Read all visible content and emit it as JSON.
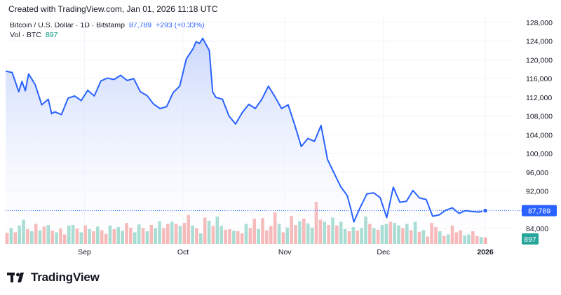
{
  "header": {
    "created": "Created with TradingView.com, Jan 01, 2026 11:18 UTC"
  },
  "legend": {
    "symbol": "Bitcoin / U.S. Dollar · 1D · Bitstamp",
    "price": "87,789",
    "change": "+293 (+0.33%)",
    "volume_label": "Vol · BTC",
    "volume_value": "897"
  },
  "footer": {
    "brand": "TradingView"
  },
  "colors": {
    "line": "#2962ff",
    "area_top": "#c5d3fb",
    "volume_up": "#8fd3c7",
    "volume_down": "#f5a6a6",
    "price_badge": "#2962ff",
    "volume_badge": "#26a69a"
  },
  "chart_data": {
    "type": "area",
    "x_range": [
      "2025-08-08",
      "2026-01-01"
    ],
    "ylim": [
      84000,
      128000
    ],
    "y_ticks": [
      "128,000",
      "124,000",
      "120,000",
      "116,000",
      "112,000",
      "108,000",
      "104,000",
      "100,000",
      "96,000",
      "92,000",
      "88,000",
      "84,000"
    ],
    "x_ticks": [
      {
        "label": "Sep",
        "date": "2025-09-01"
      },
      {
        "label": "Oct",
        "date": "2025-10-01"
      },
      {
        "label": "Nov",
        "date": "2025-11-01"
      },
      {
        "label": "Dec",
        "date": "2025-12-01"
      },
      {
        "label": "2026",
        "date": "2026-01-01"
      }
    ],
    "last_price_label": "87,789",
    "last_volume_label": "897",
    "series": [
      {
        "name": "Bitcoin / U.S. Dollar",
        "x": [
          "2025-08-08",
          "2025-08-10",
          "2025-08-12",
          "2025-08-13",
          "2025-08-14",
          "2025-08-15",
          "2025-08-17",
          "2025-08-19",
          "2025-08-21",
          "2025-08-22",
          "2025-08-23",
          "2025-08-25",
          "2025-08-27",
          "2025-08-29",
          "2025-08-31",
          "2025-09-02",
          "2025-09-04",
          "2025-09-06",
          "2025-09-08",
          "2025-09-10",
          "2025-09-12",
          "2025-09-14",
          "2025-09-16",
          "2025-09-18",
          "2025-09-20",
          "2025-09-22",
          "2025-09-24",
          "2025-09-26",
          "2025-09-28",
          "2025-09-30",
          "2025-10-02",
          "2025-10-04",
          "2025-10-05",
          "2025-10-06",
          "2025-10-07",
          "2025-10-09",
          "2025-10-10",
          "2025-10-11",
          "2025-10-13",
          "2025-10-15",
          "2025-10-17",
          "2025-10-19",
          "2025-10-21",
          "2025-10-23",
          "2025-10-25",
          "2025-10-27",
          "2025-10-29",
          "2025-10-31",
          "2025-11-02",
          "2025-11-04",
          "2025-11-06",
          "2025-11-08",
          "2025-11-10",
          "2025-11-12",
          "2025-11-14",
          "2025-11-16",
          "2025-11-18",
          "2025-11-20",
          "2025-11-21",
          "2025-11-22",
          "2025-11-24",
          "2025-11-26",
          "2025-11-28",
          "2025-11-30",
          "2025-12-02",
          "2025-12-04",
          "2025-12-06",
          "2025-12-08",
          "2025-12-10",
          "2025-12-12",
          "2025-12-14",
          "2025-12-16",
          "2025-12-18",
          "2025-12-20",
          "2025-12-22",
          "2025-12-24",
          "2025-12-26",
          "2025-12-28",
          "2025-12-30",
          "2026-01-01"
        ],
        "values": [
          117600,
          117300,
          113200,
          115400,
          113400,
          117000,
          114700,
          110400,
          111600,
          108500,
          108900,
          108300,
          111800,
          112300,
          111300,
          113500,
          112300,
          115500,
          116100,
          115800,
          116700,
          115600,
          116000,
          113200,
          112400,
          110600,
          109600,
          110000,
          113000,
          114400,
          120200,
          122300,
          123900,
          123500,
          124600,
          122000,
          113200,
          112000,
          111600,
          108000,
          106300,
          108700,
          110500,
          109600,
          111600,
          114400,
          112100,
          109600,
          110400,
          106100,
          101500,
          103200,
          102600,
          106000,
          98700,
          95800,
          92900,
          91000,
          88400,
          85400,
          88600,
          91400,
          91600,
          90600,
          86300,
          92800,
          89600,
          89800,
          92100,
          90500,
          90200,
          86600,
          86900,
          87900,
          88400,
          87200,
          87800,
          87600,
          87500,
          87789
        ]
      }
    ],
    "volume": [
      {
        "v": 2.1,
        "c": "down"
      },
      {
        "v": 3.0,
        "c": "up"
      },
      {
        "v": 2.2,
        "c": "down"
      },
      {
        "v": 3.5,
        "c": "up"
      },
      {
        "v": 4.6,
        "c": "up"
      },
      {
        "v": 2.8,
        "c": "down"
      },
      {
        "v": 2.4,
        "c": "up"
      },
      {
        "v": 3.8,
        "c": "down"
      },
      {
        "v": 2.6,
        "c": "up"
      },
      {
        "v": 3.3,
        "c": "down"
      },
      {
        "v": 3.6,
        "c": "up"
      },
      {
        "v": 2.5,
        "c": "down"
      },
      {
        "v": 2.2,
        "c": "up"
      },
      {
        "v": 2.9,
        "c": "down"
      },
      {
        "v": 1.8,
        "c": "down"
      },
      {
        "v": 3.5,
        "c": "up"
      },
      {
        "v": 3.6,
        "c": "up"
      },
      {
        "v": 2.9,
        "c": "down"
      },
      {
        "v": 2.2,
        "c": "up"
      },
      {
        "v": 3.5,
        "c": "down"
      },
      {
        "v": 2.8,
        "c": "up"
      },
      {
        "v": 2.4,
        "c": "down"
      },
      {
        "v": 3.3,
        "c": "up"
      },
      {
        "v": 2.6,
        "c": "down"
      },
      {
        "v": 1.9,
        "c": "down"
      },
      {
        "v": 3.5,
        "c": "up"
      },
      {
        "v": 2.8,
        "c": "down"
      },
      {
        "v": 3.2,
        "c": "up"
      },
      {
        "v": 2.5,
        "c": "up"
      },
      {
        "v": 4.0,
        "c": "down"
      },
      {
        "v": 3.1,
        "c": "down"
      },
      {
        "v": 2.2,
        "c": "up"
      },
      {
        "v": 3.7,
        "c": "up"
      },
      {
        "v": 3.0,
        "c": "down"
      },
      {
        "v": 2.4,
        "c": "up"
      },
      {
        "v": 3.6,
        "c": "down"
      },
      {
        "v": 3.0,
        "c": "up"
      },
      {
        "v": 4.3,
        "c": "up"
      },
      {
        "v": 3.0,
        "c": "down"
      },
      {
        "v": 3.8,
        "c": "down"
      },
      {
        "v": 4.2,
        "c": "up"
      },
      {
        "v": 3.8,
        "c": "down"
      },
      {
        "v": 3.4,
        "c": "up"
      },
      {
        "v": 4.0,
        "c": "down"
      },
      {
        "v": 5.5,
        "c": "down"
      },
      {
        "v": 3.5,
        "c": "up"
      },
      {
        "v": 3.0,
        "c": "down"
      },
      {
        "v": 2.0,
        "c": "up"
      },
      {
        "v": 5.0,
        "c": "down"
      },
      {
        "v": 4.4,
        "c": "up"
      },
      {
        "v": 3.4,
        "c": "down"
      },
      {
        "v": 5.2,
        "c": "up"
      },
      {
        "v": 3.4,
        "c": "up"
      },
      {
        "v": 2.7,
        "c": "down"
      },
      {
        "v": 2.8,
        "c": "down"
      },
      {
        "v": 2.5,
        "c": "up"
      },
      {
        "v": 2.4,
        "c": "down"
      },
      {
        "v": 2.0,
        "c": "down"
      },
      {
        "v": 3.8,
        "c": "up"
      },
      {
        "v": 3.0,
        "c": "down"
      },
      {
        "v": 4.8,
        "c": "down"
      },
      {
        "v": 2.8,
        "c": "up"
      },
      {
        "v": 4.9,
        "c": "down"
      },
      {
        "v": 2.6,
        "c": "down"
      },
      {
        "v": 3.4,
        "c": "down"
      },
      {
        "v": 6.0,
        "c": "down"
      },
      {
        "v": 3.8,
        "c": "up"
      },
      {
        "v": 2.2,
        "c": "down"
      },
      {
        "v": 3.1,
        "c": "up"
      },
      {
        "v": 5.3,
        "c": "down"
      },
      {
        "v": 3.6,
        "c": "down"
      },
      {
        "v": 4.3,
        "c": "up"
      },
      {
        "v": 4.8,
        "c": "down"
      },
      {
        "v": 3.9,
        "c": "up"
      },
      {
        "v": 3.1,
        "c": "up"
      },
      {
        "v": 8.0,
        "c": "down"
      },
      {
        "v": 4.6,
        "c": "down"
      },
      {
        "v": 4.2,
        "c": "up"
      },
      {
        "v": 3.6,
        "c": "down"
      },
      {
        "v": 5.0,
        "c": "up"
      },
      {
        "v": 3.5,
        "c": "down"
      },
      {
        "v": 4.2,
        "c": "up"
      },
      {
        "v": 2.8,
        "c": "up"
      },
      {
        "v": 2.4,
        "c": "down"
      },
      {
        "v": 3.2,
        "c": "up"
      },
      {
        "v": 2.5,
        "c": "down"
      },
      {
        "v": 3.0,
        "c": "up"
      },
      {
        "v": 5.2,
        "c": "up"
      },
      {
        "v": 3.8,
        "c": "down"
      },
      {
        "v": 3.0,
        "c": "up"
      },
      {
        "v": 2.7,
        "c": "down"
      },
      {
        "v": 3.6,
        "c": "up"
      },
      {
        "v": 3.8,
        "c": "up"
      },
      {
        "v": 4.2,
        "c": "down"
      },
      {
        "v": 4.0,
        "c": "up"
      },
      {
        "v": 3.5,
        "c": "up"
      },
      {
        "v": 3.0,
        "c": "down"
      },
      {
        "v": 3.8,
        "c": "up"
      },
      {
        "v": 2.6,
        "c": "down"
      },
      {
        "v": 4.2,
        "c": "up"
      },
      {
        "v": 2.3,
        "c": "down"
      },
      {
        "v": 2.6,
        "c": "up"
      },
      {
        "v": 1.4,
        "c": "down"
      },
      {
        "v": 4.0,
        "c": "down"
      },
      {
        "v": 3.2,
        "c": "down"
      },
      {
        "v": 2.4,
        "c": "up"
      },
      {
        "v": 1.5,
        "c": "down"
      },
      {
        "v": 1.8,
        "c": "up"
      },
      {
        "v": 3.5,
        "c": "down"
      },
      {
        "v": 2.2,
        "c": "down"
      },
      {
        "v": 2.6,
        "c": "down"
      },
      {
        "v": 1.6,
        "c": "up"
      },
      {
        "v": 1.8,
        "c": "up"
      },
      {
        "v": 2.4,
        "c": "down"
      },
      {
        "v": 1.5,
        "c": "down"
      },
      {
        "v": 1.3,
        "c": "up"
      },
      {
        "v": 1.2,
        "c": "down"
      }
    ]
  }
}
